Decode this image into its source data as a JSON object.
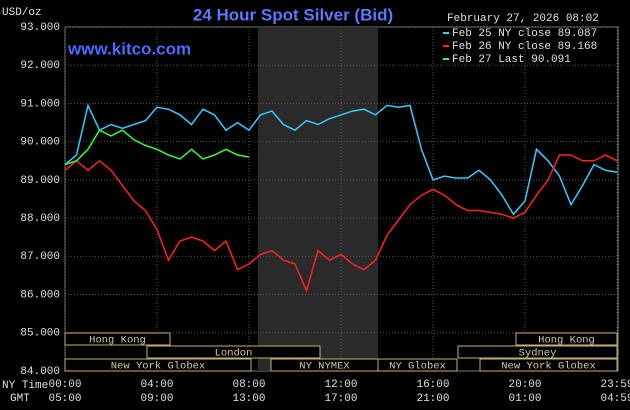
{
  "chart_data": {
    "type": "line",
    "title": "24 Hour Spot Silver (Bid)",
    "source": "www.kitco.com",
    "timestamp": "February 27, 2026 08:02",
    "y_unit": "USD/oz",
    "x_label": "NY Time",
    "x2_label": "GMT",
    "grid": true,
    "x": [
      0,
      0.5,
      1,
      1.5,
      2,
      2.5,
      3,
      3.5,
      4,
      4.5,
      5,
      5.5,
      6,
      6.5,
      7,
      7.5,
      8,
      8.5,
      9,
      9.5,
      10,
      10.5,
      11,
      11.5,
      12,
      12.5,
      13,
      13.5,
      14,
      14.5,
      15,
      15.5,
      16,
      16.5,
      17,
      17.5,
      18,
      18.5,
      19,
      19.5,
      20,
      20.5,
      21,
      21.5,
      22,
      22.5,
      23,
      23.5,
      24
    ],
    "xlim": [
      0,
      24
    ],
    "xticks": [
      {
        "value": 0,
        "label": "00:00"
      },
      {
        "value": 4,
        "label": "04:00"
      },
      {
        "value": 8,
        "label": "08:00"
      },
      {
        "value": 12,
        "label": "12:00"
      },
      {
        "value": 16,
        "label": "16:00"
      },
      {
        "value": 20,
        "label": "20:00"
      },
      {
        "value": 24,
        "label": "23:59"
      }
    ],
    "x2ticks": [
      {
        "value": 0,
        "label": "05:00"
      },
      {
        "value": 4,
        "label": "09:00"
      },
      {
        "value": 8,
        "label": "13:00"
      },
      {
        "value": 12,
        "label": "17:00"
      },
      {
        "value": 16,
        "label": "21:00"
      },
      {
        "value": 20,
        "label": "01:00"
      },
      {
        "value": 24,
        "label": "04:59"
      }
    ],
    "ylim": [
      84,
      93
    ],
    "yticks": [
      {
        "value": 84,
        "label": "84.000"
      },
      {
        "value": 85,
        "label": "85.000"
      },
      {
        "value": 86,
        "label": "86.000"
      },
      {
        "value": 87,
        "label": "87.000"
      },
      {
        "value": 88,
        "label": "88.000"
      },
      {
        "value": 89,
        "label": "89.000"
      },
      {
        "value": 90,
        "label": "90.000"
      },
      {
        "value": 91,
        "label": "91.000"
      },
      {
        "value": 92,
        "label": "92.000"
      },
      {
        "value": 93,
        "label": "93.000"
      }
    ],
    "sessions": [
      "Hong Kong",
      "London",
      "New York Globex",
      "NY NYMEX",
      "NY Globex",
      "Sydney",
      "Hong Kong",
      "New York Globex"
    ],
    "series": [
      {
        "name": "Feb 25 NY close 89.087",
        "color": "#33ccff",
        "values": [
          89.4,
          89.65,
          90.95,
          90.3,
          90.45,
          90.35,
          90.45,
          90.55,
          90.9,
          90.85,
          90.7,
          90.45,
          90.85,
          90.7,
          90.3,
          90.5,
          90.3,
          90.7,
          90.8,
          90.45,
          90.3,
          90.55,
          90.45,
          90.6,
          90.7,
          90.8,
          90.85,
          90.7,
          90.95,
          90.9,
          90.95,
          89.8,
          89.0,
          89.1,
          89.05,
          89.05,
          89.25,
          89.0,
          88.6,
          88.1,
          88.45,
          89.8,
          89.5,
          89.1,
          88.35,
          88.85,
          89.4,
          89.25,
          89.2
        ]
      },
      {
        "name": "Feb 26 NY close 89.168",
        "color": "#ff2020",
        "values": [
          89.25,
          89.5,
          89.25,
          89.5,
          89.25,
          88.85,
          88.45,
          88.2,
          87.7,
          86.9,
          87.4,
          87.5,
          87.4,
          87.15,
          87.4,
          86.65,
          86.8,
          87.05,
          87.15,
          86.9,
          86.8,
          86.1,
          87.15,
          86.9,
          87.05,
          86.8,
          86.65,
          86.9,
          87.55,
          87.95,
          88.35,
          88.6,
          88.75,
          88.6,
          88.35,
          88.2,
          88.2,
          88.15,
          88.1,
          88.0,
          88.15,
          88.6,
          89.0,
          89.65,
          89.65,
          89.5,
          89.5,
          89.65,
          89.5
        ]
      },
      {
        "name": "Feb 27 Last 90.091",
        "color": "#33ff33",
        "values": [
          89.4,
          89.5,
          89.8,
          90.3,
          90.15,
          90.3,
          90.05,
          89.9,
          89.8,
          89.65,
          89.55,
          89.8,
          89.55,
          89.65,
          89.8,
          89.65,
          89.6,
          null,
          null,
          null,
          null,
          null,
          null,
          null,
          null,
          null,
          null,
          null,
          null,
          null,
          null,
          null,
          null,
          null,
          null,
          null,
          null,
          null,
          null,
          null,
          null,
          null,
          null,
          null,
          null,
          null,
          null,
          null,
          null
        ]
      }
    ]
  }
}
